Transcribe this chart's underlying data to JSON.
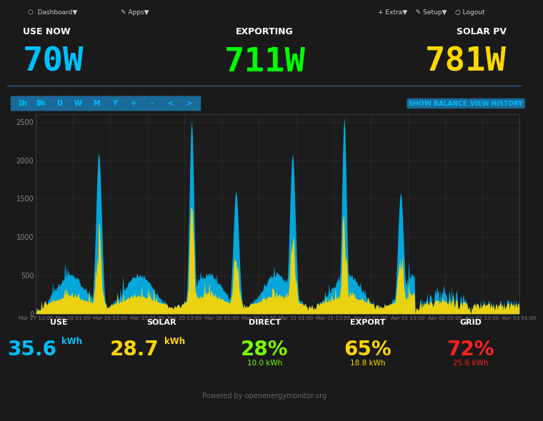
{
  "bg_color": "#1a1a1a",
  "panel_bg": "#111111",
  "chart_bg": "#1c1c1c",
  "title_bar_bg": "#0d0d0d",
  "nav_bar_bg": "#111111",
  "use_now_label": "USE NOW",
  "use_now_value": "70W",
  "use_now_color": "#00bfff",
  "exporting_label": "EXPORTING",
  "exporting_value": "711W",
  "exporting_color": "#00ff00",
  "solar_pv_label": "SOLAR PV",
  "solar_pv_value": "781W",
  "solar_pv_color": "#ffd700",
  "nav_buttons": [
    "1h",
    "8h",
    "D",
    "W",
    "M",
    "Y",
    "+",
    "-",
    "<",
    ">"
  ],
  "nav_button_color": "#1a6a9a",
  "nav_button_text_color": "#00bfff",
  "show_balance_text": "SHOW BALANCE",
  "view_history_text": "VIEW HISTORY",
  "y_ticks": [
    0,
    500,
    1000,
    1500,
    2000,
    2500
  ],
  "y_max": 2600,
  "x_tick_labels": [
    "Mar 27 13:00",
    "Mar 28 01:00",
    "Mar 28 13:00",
    "Mar 29 01:00",
    "Mar 29 13:00",
    "Mar 30 01:00",
    "Mar 30 13:00",
    "Mar 31 01:00",
    "Mar 31 13:00",
    "Apr 01 01:00",
    "Apr 01 13:00",
    "Apr 02 01:00",
    "Apr 02 13:00",
    "Apr 03 01:00"
  ],
  "blue_color": "#00bfff",
  "yellow_color": "#ffd700",
  "stats": [
    {
      "label": "USE",
      "value": "35.6",
      "unit": "kWh",
      "value_color": "#00bfff",
      "sub": null,
      "sub_color": null
    },
    {
      "label": "SOLAR",
      "value": "28.7",
      "unit": "kWh",
      "value_color": "#ffd700",
      "sub": null,
      "sub_color": null
    },
    {
      "label": "DIRECT",
      "value": "28%",
      "unit": null,
      "value_color": "#7cfc00",
      "sub": "10.0 kWh",
      "sub_color": "#7cfc00"
    },
    {
      "label": "EXPORT",
      "value": "65%",
      "unit": null,
      "value_color": "#ffd700",
      "sub": "18.8 kWh",
      "sub_color": "#ffd700"
    },
    {
      "label": "GRID",
      "value": "72%",
      "unit": null,
      "value_color": "#ff2222",
      "sub": "25.6 kWh",
      "sub_color": "#ff2222"
    }
  ],
  "powered_by": "Powered by openenergymonitor.org"
}
